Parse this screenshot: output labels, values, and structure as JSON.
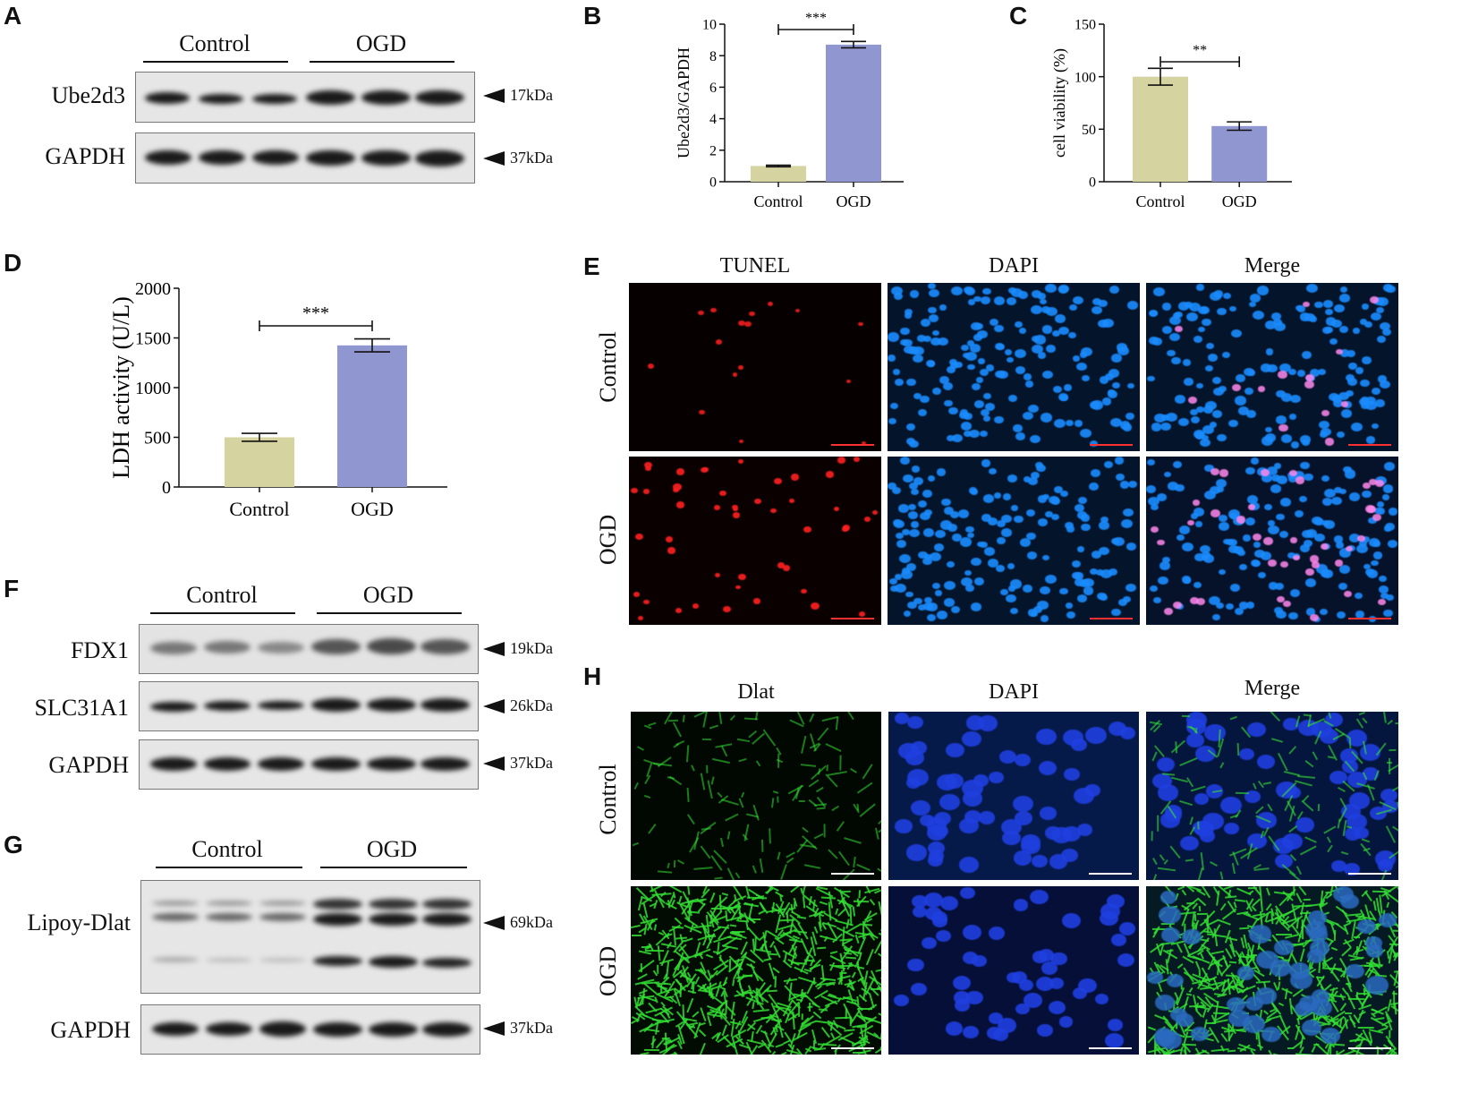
{
  "panels": {
    "a": {
      "letter": "A",
      "groups": [
        "Control",
        "OGD"
      ],
      "rows": [
        {
          "label": "Ube2d3",
          "kda": "17kDa"
        },
        {
          "label": "GAPDH",
          "kda": "37kDa"
        }
      ]
    },
    "b": {
      "letter": "B"
    },
    "c": {
      "letter": "C"
    },
    "d": {
      "letter": "D"
    },
    "e": {
      "letter": "E",
      "columns": [
        "TUNEL",
        "DAPI",
        "Merge"
      ],
      "rows": [
        "Control",
        "OGD"
      ]
    },
    "f": {
      "letter": "F",
      "groups": [
        "Control",
        "OGD"
      ],
      "rows": [
        {
          "label": "FDX1",
          "kda": "19kDa"
        },
        {
          "label": "SLC31A1",
          "kda": "26kDa"
        },
        {
          "label": "GAPDH",
          "kda": "37kDa"
        }
      ]
    },
    "g": {
      "letter": "G",
      "groups": [
        "Control",
        "OGD"
      ],
      "rows": [
        {
          "label": "Lipoy-Dlat",
          "kda": "69kDa"
        },
        {
          "label": "GAPDH",
          "kda": "37kDa"
        }
      ]
    },
    "h": {
      "letter": "H",
      "columns": [
        "Dlat",
        "DAPI",
        "Merge"
      ],
      "rows": [
        "Control",
        "OGD"
      ]
    }
  },
  "colors": {
    "control_bar": "#d5d4a1",
    "ogd_bar": "#9096cf",
    "tunel": "#ff2020",
    "dapi": "#1a8cff",
    "dlat": "#33dd33"
  },
  "chart_data": [
    {
      "panel": "B",
      "type": "bar",
      "categories": [
        "Control",
        "OGD"
      ],
      "values": [
        1.0,
        8.7
      ],
      "errors": [
        0.05,
        0.2
      ],
      "ylabel": "Ube2d3/GAPDH",
      "ylim": [
        0,
        10
      ],
      "yticks": [
        0,
        2,
        4,
        6,
        8,
        10
      ],
      "significance": "***"
    },
    {
      "panel": "C",
      "type": "bar",
      "categories": [
        "Control",
        "OGD"
      ],
      "values": [
        100,
        53
      ],
      "errors": [
        8,
        4
      ],
      "ylabel": "cell viability (%)",
      "ylim": [
        0,
        150
      ],
      "yticks": [
        0,
        50,
        100,
        150
      ],
      "significance": "**"
    },
    {
      "panel": "D",
      "type": "bar",
      "categories": [
        "Control",
        "OGD"
      ],
      "values": [
        500,
        1425
      ],
      "errors": [
        40,
        65
      ],
      "ylabel": "LDH activity (U/L)",
      "ylim": [
        0,
        2000
      ],
      "yticks": [
        0,
        500,
        1000,
        1500,
        2000
      ],
      "significance": "***"
    }
  ]
}
